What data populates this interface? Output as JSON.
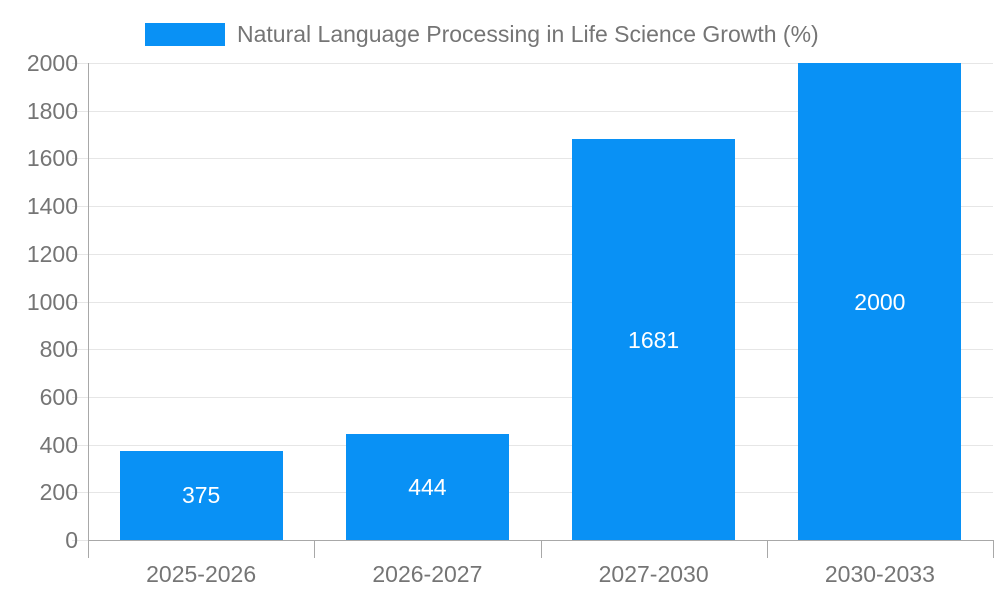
{
  "chart_data": {
    "type": "bar",
    "title": "",
    "xlabel": "",
    "ylabel": "",
    "categories": [
      "2025-2026",
      "2026-2027",
      "2027-2030",
      "2030-2033"
    ],
    "series": [
      {
        "name": "Natural Language Processing in Life Science Growth (%)",
        "values": [
          375,
          444,
          1681,
          2000
        ],
        "color": "#0991f5"
      }
    ],
    "value_labels": [
      375,
      444,
      1681,
      2000
    ],
    "value_label_color": "#ffffff",
    "ylim": [
      0,
      2000
    ],
    "yticks": [
      0,
      200,
      400,
      600,
      800,
      1000,
      1200,
      1400,
      1600,
      1800,
      2000
    ],
    "grid": true,
    "legend_position": "top",
    "axis_label_color": "#757575",
    "gridline_color": "#e6e6e6",
    "axis_line_color": "#a8a8a8",
    "background_color": "#ffffff"
  }
}
